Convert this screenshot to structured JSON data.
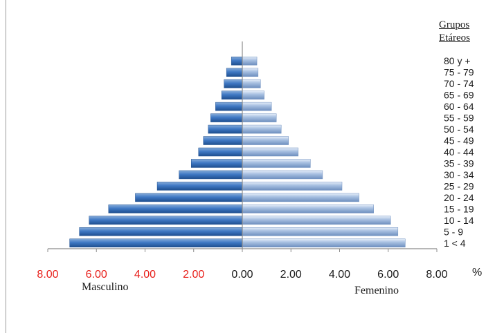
{
  "chart_data": {
    "type": "bar",
    "orientation": "horizontal-population-pyramid",
    "legend_title": [
      "Grupos",
      "Etáreos"
    ],
    "categories": [
      "1 <  4",
      "5 - 9",
      "10 - 14",
      "15 - 19",
      "20 - 24",
      "25 - 29",
      "30 - 34",
      "35 - 39",
      "40 - 44",
      "45 - 49",
      "50 - 54",
      "55 - 59",
      "60 - 64",
      "65 - 69",
      "70 - 74",
      "75 - 79",
      "80 y +"
    ],
    "series": [
      {
        "name": "Masculino",
        "side": "left",
        "values": [
          7.1,
          6.7,
          6.3,
          5.5,
          4.4,
          3.5,
          2.6,
          2.1,
          1.8,
          1.6,
          1.4,
          1.3,
          1.1,
          0.85,
          0.75,
          0.65,
          0.45
        ]
      },
      {
        "name": "Femenino",
        "side": "right",
        "values": [
          6.7,
          6.4,
          6.1,
          5.4,
          4.8,
          4.1,
          3.3,
          2.8,
          2.3,
          1.9,
          1.6,
          1.4,
          1.2,
          0.9,
          0.75,
          0.65,
          0.6
        ]
      }
    ],
    "xlim": [
      -8,
      8
    ],
    "ticks": [
      "8.00",
      "6.00",
      "4.00",
      "2.00",
      "0.00",
      "2.00",
      "4.00",
      "6.00",
      "8.00"
    ],
    "tick_values": [
      -8,
      -6,
      -4,
      -2,
      0,
      2,
      4,
      6,
      8
    ],
    "xlabel_left": "Masculino",
    "xlabel_right": "Femenino",
    "unit": "%",
    "colors": {
      "male_dark": "#1f4f8f",
      "male_mid": "#3f78c4",
      "male_light": "#86acd9",
      "female_dark": "#6e8fbf",
      "female_mid": "#a9c1e2",
      "female_light": "#e6eef9",
      "negative_tick": "#e8201b",
      "positive_tick": "#1a1a1a"
    }
  }
}
